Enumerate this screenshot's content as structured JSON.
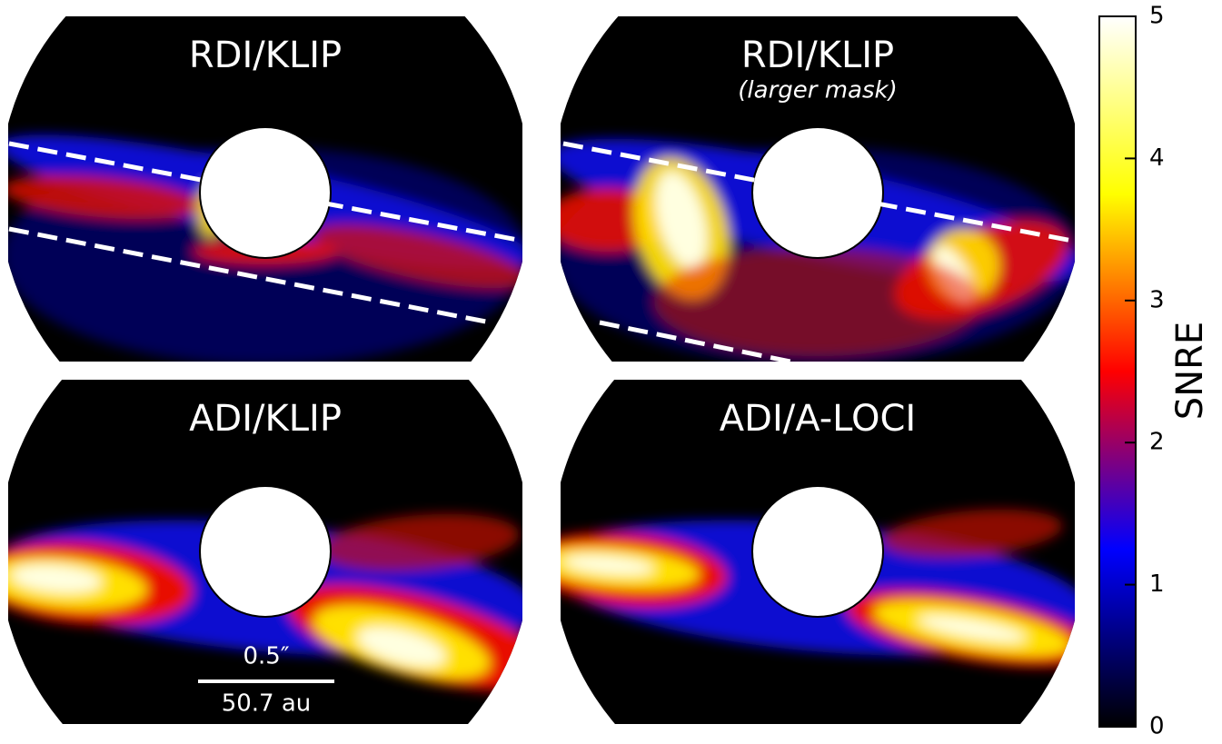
{
  "panels": [
    {
      "title": "RDI/KLIP"
    },
    {
      "title": "RDI/KLIP",
      "subtitle": "(larger mask)"
    },
    {
      "title": "ADI/KLIP"
    },
    {
      "title": "ADI/A-LOCI"
    }
  ],
  "scale_bar": {
    "angular": "0.5″",
    "physical": "50.7 au"
  },
  "colorbar": {
    "label": "SNRE",
    "lim": [
      0,
      5
    ],
    "ticks": [
      0,
      1,
      2,
      3,
      4,
      5
    ]
  }
}
